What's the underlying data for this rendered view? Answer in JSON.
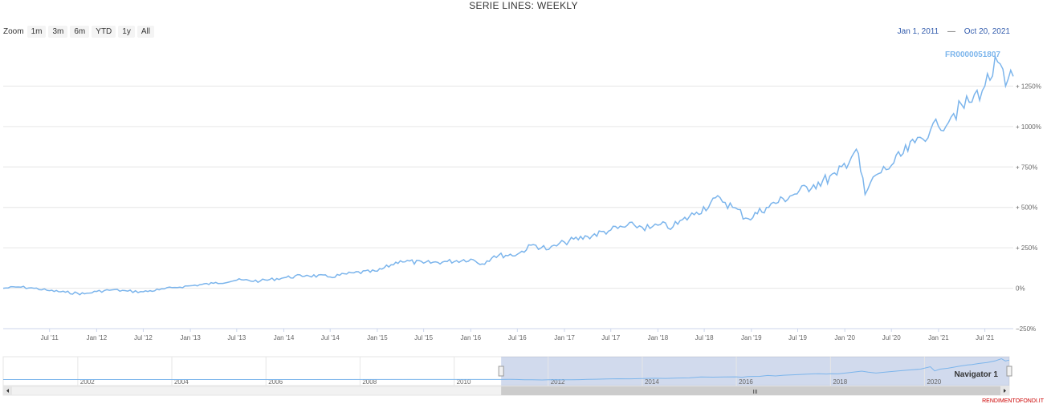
{
  "chart_data": {
    "type": "line",
    "title": "SERIE LINES: WEEKLY",
    "series": [
      {
        "name": "FR0000051807",
        "color": "#7cb5ec",
        "points": [
          [
            "2011-01-01",
            0
          ],
          [
            "2011-03-01",
            8
          ],
          [
            "2011-05-01",
            0
          ],
          [
            "2011-07-01",
            -15
          ],
          [
            "2011-09-01",
            -25
          ],
          [
            "2011-11-15",
            -35
          ],
          [
            "2012-01-01",
            -20
          ],
          [
            "2012-03-01",
            -10
          ],
          [
            "2012-05-01",
            -18
          ],
          [
            "2012-07-01",
            -22
          ],
          [
            "2012-09-01",
            -10
          ],
          [
            "2012-11-01",
            5
          ],
          [
            "2013-01-01",
            15
          ],
          [
            "2013-04-01",
            30
          ],
          [
            "2013-07-01",
            50
          ],
          [
            "2013-10-01",
            45
          ],
          [
            "2014-01-01",
            65
          ],
          [
            "2014-04-01",
            80
          ],
          [
            "2014-07-01",
            70
          ],
          [
            "2014-10-01",
            95
          ],
          [
            "2015-01-01",
            105
          ],
          [
            "2015-04-01",
            170
          ],
          [
            "2015-07-01",
            155
          ],
          [
            "2015-10-01",
            165
          ],
          [
            "2016-01-01",
            180
          ],
          [
            "2016-02-15",
            150
          ],
          [
            "2016-04-01",
            200
          ],
          [
            "2016-07-01",
            210
          ],
          [
            "2016-09-01",
            270
          ],
          [
            "2016-11-01",
            240
          ],
          [
            "2017-01-01",
            285
          ],
          [
            "2017-04-01",
            320
          ],
          [
            "2017-07-01",
            360
          ],
          [
            "2017-10-01",
            390
          ],
          [
            "2017-12-01",
            370
          ],
          [
            "2018-01-01",
            390
          ],
          [
            "2018-03-01",
            380
          ],
          [
            "2018-06-01",
            470
          ],
          [
            "2018-09-01",
            560
          ],
          [
            "2018-10-20",
            500
          ],
          [
            "2018-12-20",
            430
          ],
          [
            "2019-03-01",
            500
          ],
          [
            "2019-06-01",
            570
          ],
          [
            "2019-09-01",
            640
          ],
          [
            "2019-12-01",
            700
          ],
          [
            "2020-02-15",
            860
          ],
          [
            "2020-03-20",
            580
          ],
          [
            "2020-05-01",
            700
          ],
          [
            "2020-07-01",
            760
          ],
          [
            "2020-10-01",
            900
          ],
          [
            "2020-12-01",
            980
          ],
          [
            "2021-01-01",
            1000
          ],
          [
            "2021-03-01",
            1080
          ],
          [
            "2021-05-01",
            1150
          ],
          [
            "2021-07-01",
            1250
          ],
          [
            "2021-08-20",
            1400
          ],
          [
            "2021-09-20",
            1250
          ],
          [
            "2021-10-20",
            1310
          ]
        ]
      }
    ],
    "x_axis": {
      "type": "date",
      "min": "2011-01-01",
      "max": "2021-10-20",
      "tick_labels": [
        "Jul '11",
        "Jan '12",
        "Jul '12",
        "Jan '13",
        "Jul '13",
        "Jan '14",
        "Jul '14",
        "Jan '15",
        "Jul '15",
        "Jan '16",
        "Jul '16",
        "Jan '17",
        "Jul '17",
        "Jan '18",
        "Jul '18",
        "Jan '19",
        "Jul '19",
        "Jan '20",
        "Jul '20",
        "Jan '21",
        "Jul '21"
      ]
    },
    "y_axis": {
      "min": -250,
      "max": 1500,
      "ticks": [
        -250,
        0,
        250,
        500,
        750,
        1000,
        1250
      ],
      "tick_labels": [
        "−250%",
        "0%",
        "+ 250%",
        "+ 500%",
        "+ 750%",
        "+ 1000%",
        "+ 1250%"
      ],
      "opposite": true,
      "grid": true
    },
    "navigator": {
      "label": "Navigator 1",
      "min": "2000-06-01",
      "max": "2021-10-20",
      "tick_labels": [
        "2002",
        "2004",
        "2006",
        "2008",
        "2010",
        "2012",
        "2014",
        "2016",
        "2018",
        "2020"
      ],
      "selected_range": [
        "2011-01-01",
        "2021-10-20"
      ]
    },
    "legend": "none"
  },
  "zoom": {
    "label": "Zoom",
    "buttons": [
      "1m",
      "3m",
      "6m",
      "YTD",
      "1y",
      "All"
    ]
  },
  "range": {
    "from": "Jan 1, 2011",
    "to": "Oct 20, 2021",
    "separator": "—"
  },
  "scrollbar": {
    "grip": "III"
  },
  "footer": {
    "credit": "RENDIMENTOFONDI.IT"
  }
}
